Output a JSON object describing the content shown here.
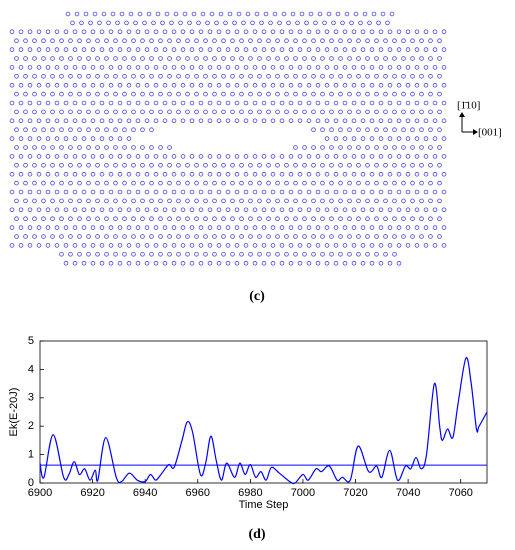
{
  "panel_c": {
    "label": "(c)",
    "direction_up": "[1̄10]",
    "direction_right": "[001]"
  },
  "chart_data": {
    "type": "line",
    "label": "(d)",
    "xlabel": "Time Step",
    "ylabel": "Ek(E-20J)",
    "xlim": [
      6900,
      7070
    ],
    "xticks": [
      6900,
      6920,
      6940,
      6960,
      6980,
      7000,
      7020,
      7040,
      7060
    ],
    "ylim": [
      0,
      5
    ],
    "yticks": [
      0,
      1,
      2,
      3,
      4,
      5
    ],
    "reference_line": 0.63,
    "reference_color": "#0000ff",
    "series": [
      {
        "color": "#0000ff",
        "x": [
          6900,
          6901.5,
          6905,
          6909,
          6911,
          6913,
          6915,
          6917,
          6919,
          6921,
          6922,
          6925,
          6929,
          6931,
          6934,
          6937,
          6940,
          6942,
          6944,
          6946,
          6949,
          6951,
          6954,
          6956,
          6958,
          6961,
          6963,
          6965,
          6967,
          6969,
          6971,
          6974,
          6976,
          6978,
          6980,
          6982,
          6984,
          6986,
          6988,
          6991,
          6995,
          6997,
          7000,
          7002,
          7005,
          7007,
          7010,
          7013,
          7015,
          7018,
          7021,
          7025,
          7028,
          7030,
          7033,
          7036,
          7039,
          7041,
          7043,
          7045,
          7047,
          7050,
          7052,
          7053,
          7055,
          7057,
          7059,
          7062,
          7064,
          7066,
          7067,
          7070
        ],
        "values": [
          0.7,
          0.2,
          1.7,
          0.2,
          0.3,
          0.75,
          0.3,
          0.5,
          0.1,
          0.45,
          0.1,
          1.6,
          0.2,
          0.05,
          0.35,
          0.1,
          0.05,
          0.3,
          0.1,
          0.3,
          0.65,
          0.55,
          1.5,
          2.15,
          1.8,
          0.3,
          0.7,
          1.65,
          0.8,
          0.1,
          0.7,
          0.2,
          0.7,
          0.3,
          0.65,
          0.2,
          0.4,
          0.1,
          0.55,
          0.35,
          0.05,
          0.0,
          0.3,
          0.1,
          0.5,
          0.4,
          0.6,
          0.1,
          0.2,
          0.1,
          1.3,
          0.4,
          0.6,
          0.2,
          1.15,
          0.1,
          0.6,
          0.5,
          0.9,
          0.5,
          1.0,
          3.5,
          2.0,
          1.5,
          1.9,
          1.6,
          2.8,
          4.4,
          3.5,
          1.9,
          2.0,
          2.5
        ]
      }
    ]
  }
}
